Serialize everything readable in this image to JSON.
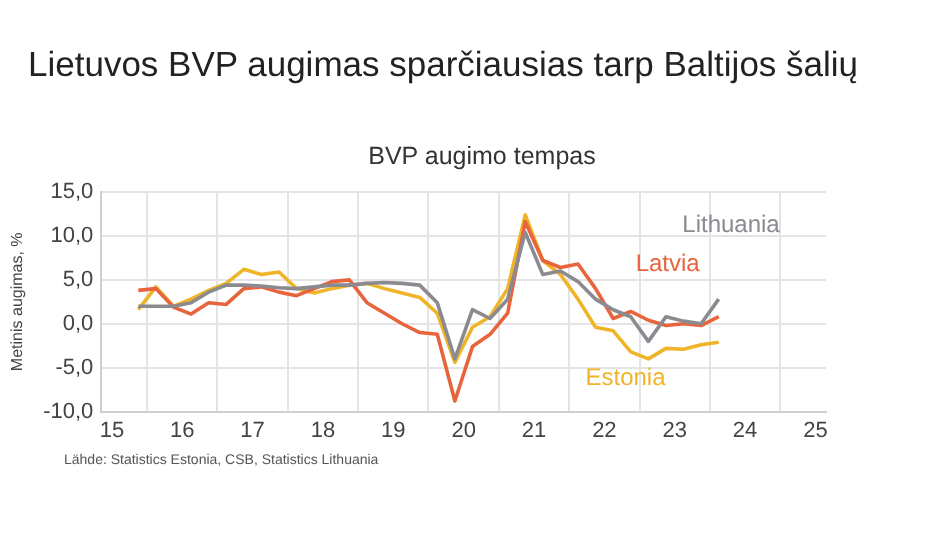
{
  "chart_data": {
    "type": "line",
    "title": "Lietuvos BVP augimas sparčiausias tarp Baltijos šalių",
    "subtitle": "BVP augimo tempas",
    "ylabel": "Metinis augimas, %",
    "annotations": [
      "Lähde: Statistics Estonia, CSB, Statistics Lithuania"
    ],
    "x": [
      15.375,
      15.625,
      15.875,
      16.125,
      16.375,
      16.625,
      16.875,
      17.125,
      17.375,
      17.625,
      17.875,
      18.125,
      18.375,
      18.625,
      18.875,
      19.125,
      19.375,
      19.625,
      19.875,
      20.125,
      20.375,
      20.625,
      20.875,
      21.125,
      21.375,
      21.625,
      21.875,
      22.125,
      22.375,
      22.625,
      22.875,
      23.125,
      23.375,
      23.625
    ],
    "series": [
      {
        "name": "Lithuania",
        "color": "#8a8a90",
        "values": [
          2.0,
          2.0,
          2.0,
          2.4,
          3.6,
          4.4,
          4.4,
          4.3,
          4.1,
          4.0,
          4.2,
          4.4,
          4.4,
          4.6,
          4.7,
          4.6,
          4.4,
          2.4,
          -4.0,
          1.6,
          0.6,
          2.8,
          10.4,
          5.6,
          6.0,
          4.8,
          2.8,
          1.6,
          0.8,
          -2.0,
          0.8,
          0.3,
          0.0,
          2.8
        ]
      },
      {
        "name": "Latvia",
        "color": "#e8643c",
        "values": [
          3.8,
          4.0,
          1.9,
          1.1,
          2.4,
          2.2,
          4.0,
          4.2,
          3.6,
          3.2,
          4.0,
          4.8,
          5.0,
          2.4,
          1.2,
          0.0,
          -1.0,
          -1.2,
          -8.8,
          -2.6,
          -1.2,
          1.2,
          11.6,
          7.2,
          6.4,
          6.8,
          4.0,
          0.6,
          1.4,
          0.4,
          -0.2,
          0.0,
          -0.2,
          0.8
        ]
      },
      {
        "name": "Estonia",
        "color": "#f0b429",
        "values": [
          1.6,
          4.2,
          2.0,
          2.8,
          3.8,
          4.6,
          6.2,
          5.6,
          5.9,
          4.0,
          3.5,
          4.0,
          4.4,
          4.6,
          4.0,
          3.5,
          3.0,
          1.2,
          -4.4,
          -0.4,
          0.8,
          4.0,
          12.4,
          7.2,
          5.6,
          2.8,
          -0.4,
          -0.8,
          -3.2,
          -4.0,
          -2.8,
          -2.9,
          -2.4,
          -2.1
        ]
      }
    ],
    "xlim": [
      14.85,
      25.15
    ],
    "xticks": [
      15,
      {
        "value": 15.5,
        "label": null
      },
      16,
      {
        "value": 16.5,
        "label": null
      },
      17,
      {
        "value": 17.5,
        "label": null
      },
      18,
      {
        "value": 18.5,
        "label": null
      },
      19,
      {
        "value": 19.5,
        "label": null
      },
      20,
      {
        "value": 20.5,
        "label": null
      },
      21,
      {
        "value": 21.5,
        "label": null
      },
      22,
      {
        "value": 22.5,
        "label": null
      },
      23,
      {
        "value": 23.5,
        "label": null
      },
      24,
      {
        "value": 24.5,
        "label": null
      },
      25
    ],
    "ylim": [
      -10,
      15
    ],
    "yticks": [
      {
        "value": -10,
        "label": "-10,0"
      },
      {
        "value": -5,
        "label": "-5,0"
      },
      {
        "value": 0,
        "label": "0,0"
      },
      {
        "value": 5,
        "label": "5,0"
      },
      {
        "value": 10,
        "label": "10,0"
      },
      {
        "value": 15,
        "label": "15,0"
      }
    ],
    "grid": true,
    "legend": false,
    "marker": "none",
    "line_style": "solid"
  }
}
